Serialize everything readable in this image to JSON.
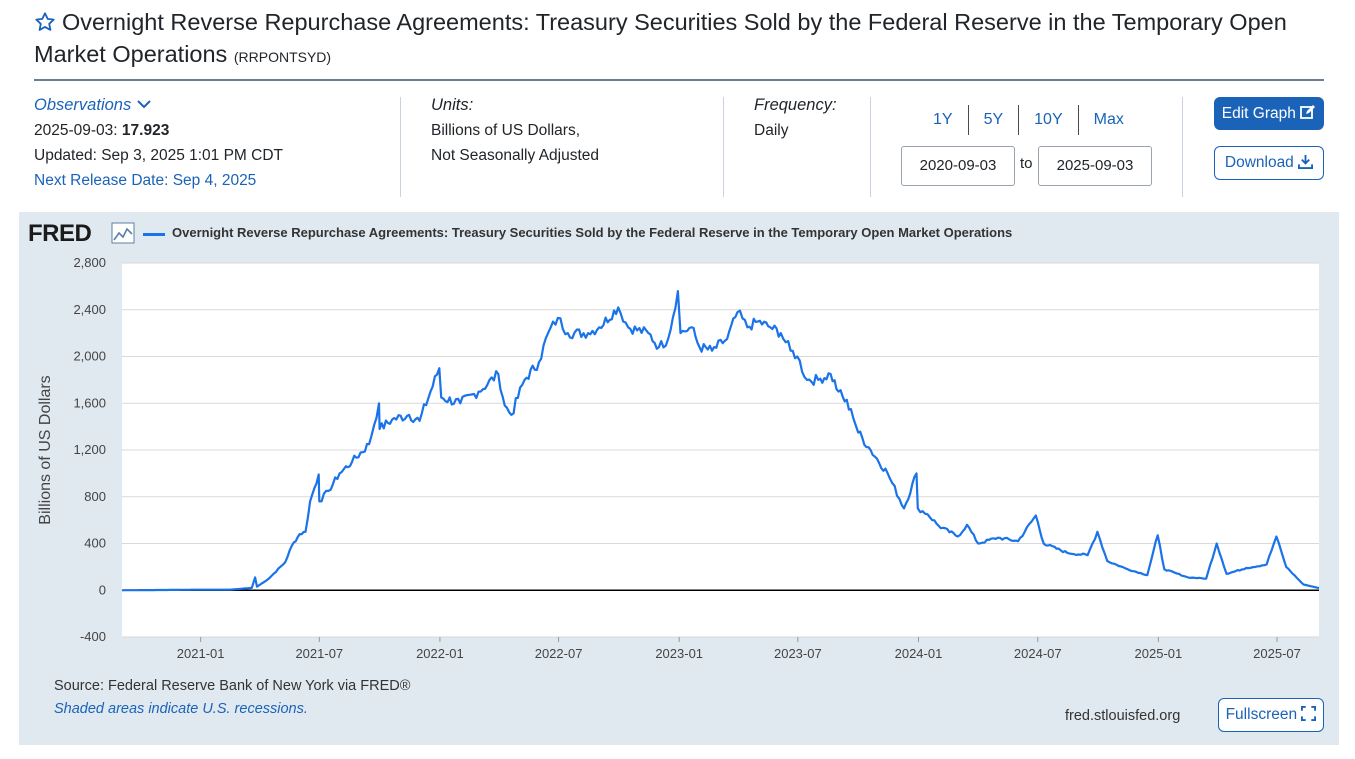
{
  "header": {
    "title": "Overnight Reverse Repurchase Agreements: Treasury Securities Sold by the Federal Reserve in the Temporary Open Market Operations",
    "series_id": "(RRPONTSYD)"
  },
  "observations": {
    "heading": "Observations",
    "date_label": "2025-09-03:",
    "value": "17.923",
    "updated": "Updated: Sep 3, 2025 1:01 PM CDT",
    "next_release": "Next Release Date: Sep 4, 2025"
  },
  "units": {
    "label": "Units:",
    "line1": "Billions of US Dollars,",
    "line2": "Not Seasonally Adjusted"
  },
  "frequency": {
    "label": "Frequency:",
    "value": "Daily"
  },
  "range": {
    "buttons": [
      "1Y",
      "5Y",
      "10Y",
      "Max"
    ],
    "start": "2020-09-03",
    "to_label": "to",
    "end": "2025-09-03"
  },
  "actions": {
    "edit_graph": "Edit Graph",
    "download": "Download",
    "fullscreen": "Fullscreen"
  },
  "chart_panel": {
    "logo": "FRED",
    "source": "Source: Federal Reserve Bank of New York via FRED®",
    "recession_note": "Shaded areas indicate U.S. recessions.",
    "site": "fred.stlouisfed.org"
  },
  "colors": {
    "series": "#1a73e8",
    "panel": "#e1e9f0",
    "accent": "#1a63b8"
  },
  "chart_data": {
    "type": "line",
    "title": "Overnight Reverse Repurchase Agreements: Treasury Securities Sold by the Federal Reserve in the Temporary Open Market Operations",
    "ylabel": "Billions of US Dollars",
    "xlabel": "",
    "ylim": [
      -400,
      2800
    ],
    "xlim": [
      "2020-09-03",
      "2025-09-03"
    ],
    "yticks": [
      -400,
      0,
      400,
      800,
      1200,
      1600,
      2000,
      2400,
      2800
    ],
    "ytick_labels": [
      "-400",
      "0",
      "400",
      "800",
      "1,200",
      "1,600",
      "2,000",
      "2,400",
      "2,800"
    ],
    "xticks": [
      "2021-01",
      "2021-07",
      "2022-01",
      "2022-07",
      "2023-01",
      "2023-07",
      "2024-01",
      "2024-07",
      "2025-01",
      "2025-07"
    ],
    "grid": true,
    "series": [
      {
        "name": "Overnight Reverse Repurchase Agreements: Treasury Securities Sold by the Federal Reserve in the Temporary Open Market Operations",
        "points": [
          [
            "2020-09-03",
            0
          ],
          [
            "2020-11-01",
            2
          ],
          [
            "2021-01-01",
            5
          ],
          [
            "2021-02-15",
            5
          ],
          [
            "2021-03-20",
            20
          ],
          [
            "2021-03-25",
            110
          ],
          [
            "2021-03-28",
            30
          ],
          [
            "2021-04-15",
            100
          ],
          [
            "2021-05-10",
            240
          ],
          [
            "2021-05-20",
            380
          ],
          [
            "2021-06-01",
            480
          ],
          [
            "2021-06-10",
            500
          ],
          [
            "2021-06-17",
            760
          ],
          [
            "2021-06-30",
            990
          ],
          [
            "2021-07-01",
            760
          ],
          [
            "2021-07-15",
            850
          ],
          [
            "2021-08-01",
            1000
          ],
          [
            "2021-08-20",
            1100
          ],
          [
            "2021-09-15",
            1250
          ],
          [
            "2021-09-30",
            1600
          ],
          [
            "2021-10-01",
            1380
          ],
          [
            "2021-10-20",
            1460
          ],
          [
            "2021-11-15",
            1500
          ],
          [
            "2021-12-01",
            1450
          ],
          [
            "2021-12-31",
            1900
          ],
          [
            "2022-01-03",
            1650
          ],
          [
            "2022-02-01",
            1600
          ],
          [
            "2022-03-01",
            1700
          ],
          [
            "2022-03-31",
            1850
          ],
          [
            "2022-04-10",
            1580
          ],
          [
            "2022-04-20",
            1500
          ],
          [
            "2022-05-10",
            1800
          ],
          [
            "2022-06-01",
            1950
          ],
          [
            "2022-06-15",
            2200
          ],
          [
            "2022-06-30",
            2330
          ],
          [
            "2022-07-15",
            2200
          ],
          [
            "2022-08-15",
            2200
          ],
          [
            "2022-09-01",
            2250
          ],
          [
            "2022-09-30",
            2420
          ],
          [
            "2022-10-15",
            2250
          ],
          [
            "2022-11-15",
            2200
          ],
          [
            "2022-12-01",
            2080
          ],
          [
            "2022-12-15",
            2150
          ],
          [
            "2022-12-30",
            2560
          ],
          [
            "2023-01-03",
            2200
          ],
          [
            "2023-01-20",
            2250
          ],
          [
            "2023-02-01",
            2080
          ],
          [
            "2023-02-20",
            2050
          ],
          [
            "2023-03-15",
            2150
          ],
          [
            "2023-03-31",
            2380
          ],
          [
            "2023-04-15",
            2250
          ],
          [
            "2023-05-01",
            2300
          ],
          [
            "2023-05-20",
            2250
          ],
          [
            "2023-06-05",
            2200
          ],
          [
            "2023-06-20",
            2050
          ],
          [
            "2023-06-30",
            2000
          ],
          [
            "2023-07-15",
            1800
          ],
          [
            "2023-08-01",
            1800
          ],
          [
            "2023-08-20",
            1850
          ],
          [
            "2023-09-01",
            1700
          ],
          [
            "2023-09-20",
            1550
          ],
          [
            "2023-10-01",
            1350
          ],
          [
            "2023-10-20",
            1200
          ],
          [
            "2023-11-15",
            1000
          ],
          [
            "2023-12-10",
            700
          ],
          [
            "2023-12-29",
            1000
          ],
          [
            "2023-12-31",
            700
          ],
          [
            "2024-01-15",
            650
          ],
          [
            "2024-02-01",
            550
          ],
          [
            "2024-03-01",
            460
          ],
          [
            "2024-03-15",
            560
          ],
          [
            "2024-04-01",
            400
          ],
          [
            "2024-05-01",
            450
          ],
          [
            "2024-06-01",
            420
          ],
          [
            "2024-06-28",
            640
          ],
          [
            "2024-07-10",
            400
          ],
          [
            "2024-08-15",
            320
          ],
          [
            "2024-09-15",
            300
          ],
          [
            "2024-09-30",
            500
          ],
          [
            "2024-10-15",
            250
          ],
          [
            "2024-11-15",
            180
          ],
          [
            "2024-12-15",
            130
          ],
          [
            "2024-12-31",
            470
          ],
          [
            "2025-01-10",
            180
          ],
          [
            "2025-02-15",
            110
          ],
          [
            "2025-03-15",
            100
          ],
          [
            "2025-03-31",
            400
          ],
          [
            "2025-04-15",
            140
          ],
          [
            "2025-05-15",
            190
          ],
          [
            "2025-06-15",
            220
          ],
          [
            "2025-06-30",
            460
          ],
          [
            "2025-07-15",
            200
          ],
          [
            "2025-08-10",
            50
          ],
          [
            "2025-08-25",
            30
          ],
          [
            "2025-09-03",
            18
          ]
        ]
      }
    ]
  }
}
